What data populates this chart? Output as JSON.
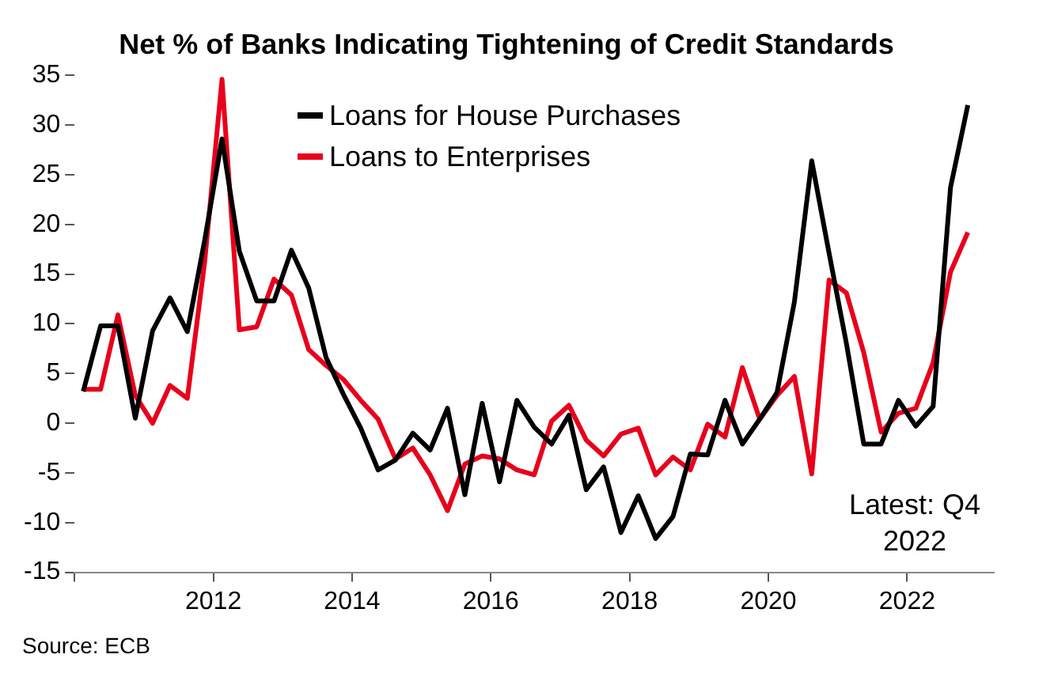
{
  "chart_data": {
    "type": "line",
    "title": "Net % of Banks Indicating Tightening of Credit Standards",
    "annotations": [
      "Latest: Q4 2022",
      "Source: ECB"
    ],
    "x": [
      2010.125,
      2010.375,
      2010.625,
      2010.875,
      2011.125,
      2011.375,
      2011.625,
      2011.875,
      2012.125,
      2012.375,
      2012.625,
      2012.875,
      2013.125,
      2013.375,
      2013.625,
      2013.875,
      2014.125,
      2014.375,
      2014.625,
      2014.875,
      2015.125,
      2015.375,
      2015.625,
      2015.875,
      2016.125,
      2016.375,
      2016.625,
      2016.875,
      2017.125,
      2017.375,
      2017.625,
      2017.875,
      2018.125,
      2018.375,
      2018.625,
      2018.875,
      2019.125,
      2019.375,
      2019.625,
      2019.875,
      2020.125,
      2020.375,
      2020.625,
      2020.875,
      2021.125,
      2021.375,
      2021.625,
      2021.875,
      2022.125,
      2022.375,
      2022.625,
      2022.875
    ],
    "series": [
      {
        "name": "Loans for House Purchases",
        "color": "#000000",
        "values": [
          3.2,
          9.8,
          9.8,
          0.5,
          9.3,
          12.6,
          9.2,
          18.4,
          28.6,
          17.3,
          12.3,
          12.3,
          17.4,
          13.6,
          6.6,
          2.9,
          -0.5,
          -4.7,
          -3.7,
          -1.0,
          -2.7,
          1.5,
          -7.2,
          2.0,
          -5.9,
          2.3,
          -0.4,
          -2.1,
          0.8,
          -6.7,
          -4.4,
          -11.0,
          -7.3,
          -11.6,
          -9.4,
          -3.1,
          -3.2,
          2.3,
          -2.1,
          0.4,
          3.1,
          12.2,
          26.4,
          17.1,
          8.0,
          -2.1,
          -2.1,
          2.3,
          -0.3,
          1.7,
          23.7,
          32.0
        ]
      },
      {
        "name": "Loans to Enterprises",
        "color": "#e8001c",
        "values": [
          3.4,
          3.4,
          10.9,
          2.8,
          0.0,
          3.8,
          2.5,
          16.2,
          34.6,
          9.4,
          9.7,
          14.5,
          12.9,
          7.4,
          5.8,
          4.4,
          2.3,
          0.4,
          -3.6,
          -2.5,
          -5.2,
          -8.8,
          -4.1,
          -3.3,
          -3.6,
          -4.7,
          -5.2,
          0.2,
          1.8,
          -1.7,
          -3.3,
          -1.1,
          -0.5,
          -5.2,
          -3.4,
          -4.7,
          -0.1,
          -1.4,
          5.6,
          0.4,
          2.8,
          4.7,
          -5.1,
          14.4,
          13.1,
          7.1,
          -0.9,
          1.0,
          1.5,
          6.1,
          15.2,
          19.2
        ]
      }
    ],
    "xlim": [
      2010,
      2023.25
    ],
    "xticks": [
      {
        "value": 2010,
        "label": null
      },
      2012,
      2014,
      2016,
      2018,
      2020,
      2022
    ],
    "ylim": [
      -15,
      35
    ],
    "yticks": [
      -15,
      -10,
      -5,
      0,
      5,
      10,
      15,
      20,
      25,
      30,
      35
    ],
    "legend": "top"
  }
}
